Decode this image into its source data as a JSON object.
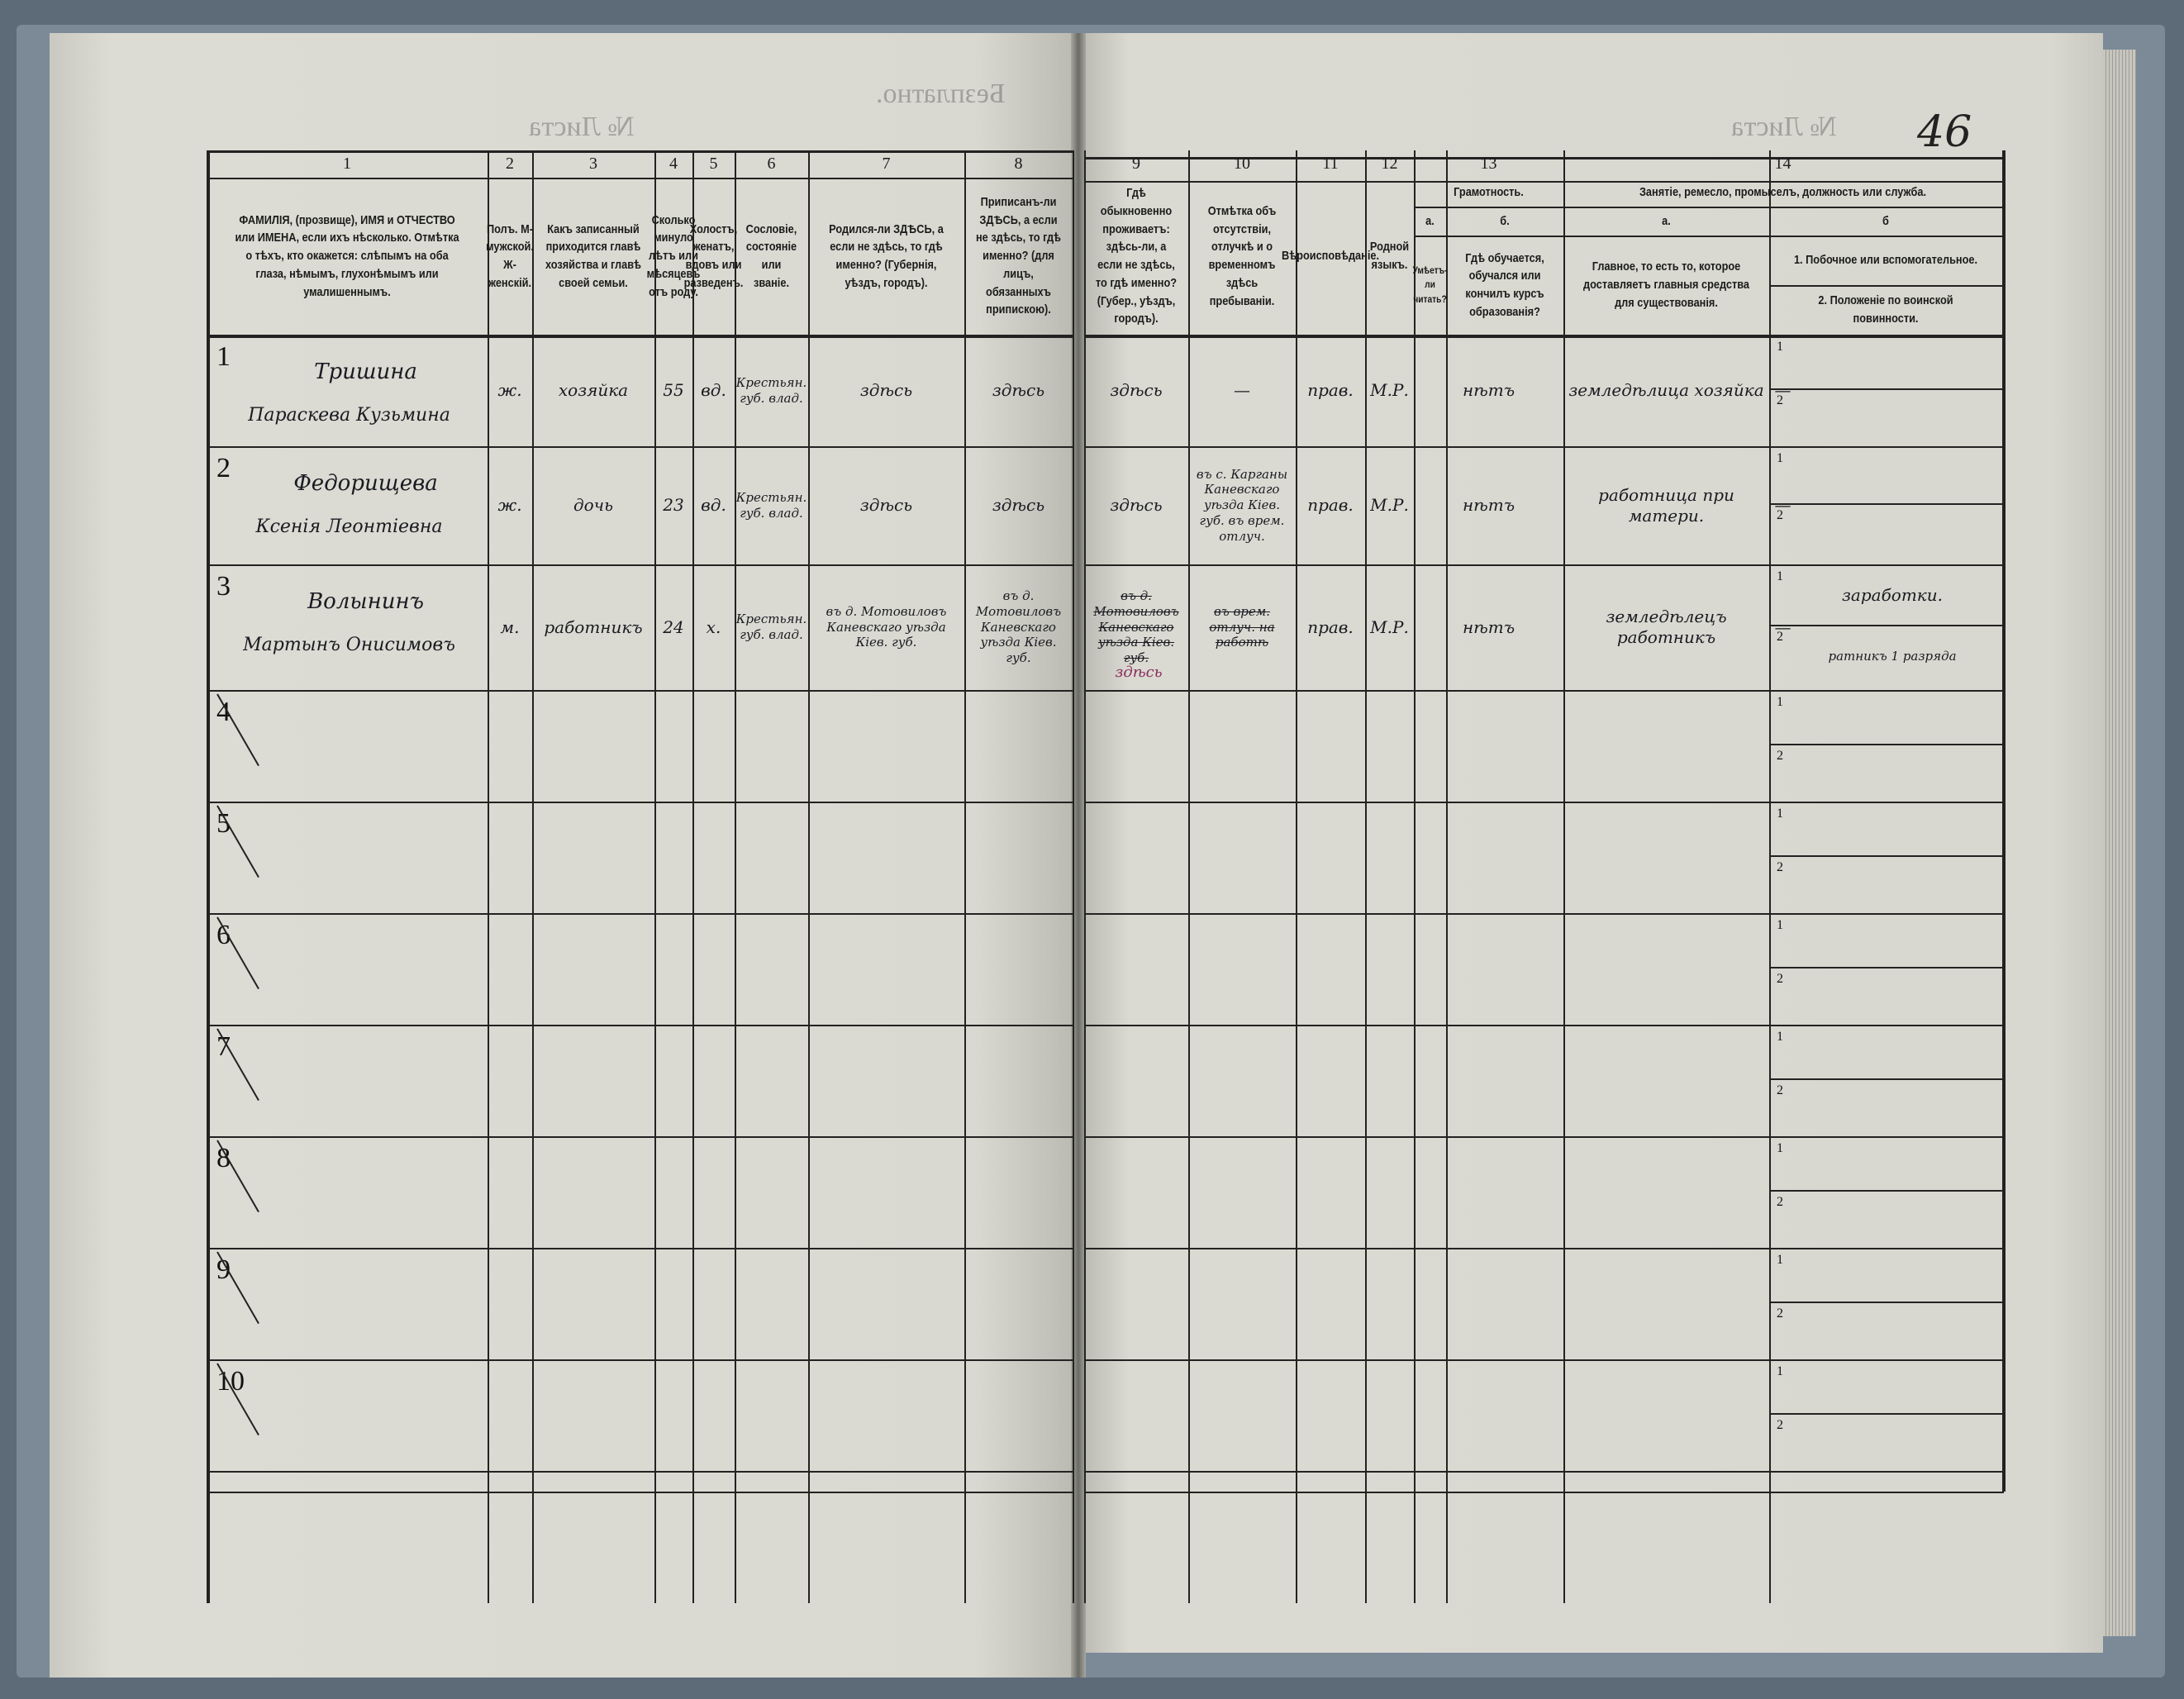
{
  "top": {
    "sheet_label_left": "№ Листа",
    "sheet_label_right": "№ Листа",
    "free_mark": "Безплатно.",
    "page_number": "46"
  },
  "columns": [
    {
      "num": "1",
      "title": "ФАМИЛІЯ, (прозвище), ИМЯ и ОТЧЕСТВО или ИМЕНА, если ихъ нѣсколько. Отмѣтка о тѣхъ, кто окажется: слѣпымъ на оба глаза, нѣмымъ, глухонѣмымъ или умалишеннымъ."
    },
    {
      "num": "2",
      "title": "Полъ. М-мужской. Ж-женскій."
    },
    {
      "num": "3",
      "title": "Какъ записанный приходится главѣ хозяйства и главѣ своей семьи."
    },
    {
      "num": "4",
      "title": "Сколько минуло лѣтъ или мѣсяцевъ отъ роду."
    },
    {
      "num": "5",
      "title": "Холостъ, женатъ, вдовъ или разведенъ."
    },
    {
      "num": "6",
      "title": "Сословіе, состояніе или званіе."
    },
    {
      "num": "7",
      "title": "Родился-ли ЗДѢСЬ, а если не здѣсь, то гдѣ именно? (Губернія, уѣздъ, городъ)."
    },
    {
      "num": "8",
      "title": "Приписанъ-ли ЗДѢСЬ, а если не здѣсь, то гдѣ именно? (для лицъ, обязанныхъ припискою)."
    },
    {
      "num": "9",
      "title": "Гдѣ обыкновенно проживаетъ: здѣсь-ли, а если не здѣсь, то гдѣ именно? (Губер., уѣздъ, городъ)."
    },
    {
      "num": "10",
      "title": "Отмѣтка объ отсутствіи, отлучкѣ и о временномъ здѣсь пребываніи."
    },
    {
      "num": "11",
      "title": "Вѣроисповѣданіе."
    },
    {
      "num": "12",
      "title": "Родной языкъ."
    },
    {
      "num": "13",
      "group": "Грамотность.",
      "sub": [
        {
          "letter": "а.",
          "title": "Умѣетъ-ли читать?"
        },
        {
          "letter": "б.",
          "title": "Гдѣ обучается, обучался или кончилъ курсъ образованія?"
        }
      ]
    },
    {
      "num": "14",
      "group": "Занятіе, ремесло, промыселъ, должность или служба.",
      "sub": [
        {
          "letter": "а.",
          "title": "Главное, то есть то, которое доставляетъ главныя средства для существованія."
        },
        {
          "letter": "б",
          "title1": "1. Побочное или вспомогательное.",
          "title2": "2. Положеніе по воинской повинности."
        }
      ]
    }
  ],
  "rows": [
    {
      "n": "1",
      "surname": "Тришина",
      "name": "Параскева Кузьмина",
      "sex": "ж.",
      "relation": "хозяйка",
      "age": "55",
      "marital": "вд.",
      "estate": "Крестьян. губ. влад.",
      "born": "здѣсь",
      "registered": "здѣсь",
      "resides": "здѣсь",
      "absence": "—",
      "religion": "прав.",
      "language": "М.Р.",
      "reads": "нѣтъ",
      "school": "—",
      "occupation_main": "земледѣлица хозяйка",
      "occ_side_1": "",
      "occ_side_2": ""
    },
    {
      "n": "2",
      "surname": "Федорищева",
      "name": "Ксенія Леонтіевна",
      "sex": "ж.",
      "relation": "дочь",
      "age": "23",
      "marital": "вд.",
      "estate": "Крестьян. губ. влад.",
      "born": "здѣсь",
      "registered": "здѣсь",
      "resides": "здѣсь",
      "absence": "въ с. Карганы Каневскаго уѣзда Кіев. губ. въ врем. отлуч.",
      "religion": "прав.",
      "language": "М.Р.",
      "reads": "нѣтъ",
      "school": "—",
      "occupation_main": "работница при матери.",
      "occ_side_1": "",
      "occ_side_2": ""
    },
    {
      "n": "3",
      "surname": "Волынинъ",
      "name": "Мартынъ Онисимовъ",
      "sex": "м.",
      "relation": "работникъ",
      "age": "24",
      "marital": "х.",
      "estate": "Крестьян. губ. влад.",
      "born": "въ д. Мотовиловъ Каневскаго уѣзда Кіев. губ.",
      "registered": "въ д. Мотовиловъ Каневскаго уѣзда Кіев. губ.",
      "resides": "въ д. Мотовиловъ Каневскаго уѣзда Кіев. губ.",
      "resides_note": "здѣсь",
      "absence": "въ врем. отлуч. на работѣ",
      "religion": "прав.",
      "language": "М.Р.",
      "reads": "нѣтъ",
      "school": "—",
      "occupation_main": "земледѣлецъ работникъ",
      "occ_side_1": "заработки.",
      "occ_side_2": "ратникъ 1 разряда"
    },
    {
      "n": "4"
    },
    {
      "n": "5"
    },
    {
      "n": "6"
    },
    {
      "n": "7"
    },
    {
      "n": "8"
    },
    {
      "n": "9"
    },
    {
      "n": "10"
    }
  ],
  "colors": {
    "paper": "#d9d9d1",
    "ink": "#1b1b1b",
    "book_cover": "#7c8a98",
    "red_ink": "#8a2a5a"
  }
}
